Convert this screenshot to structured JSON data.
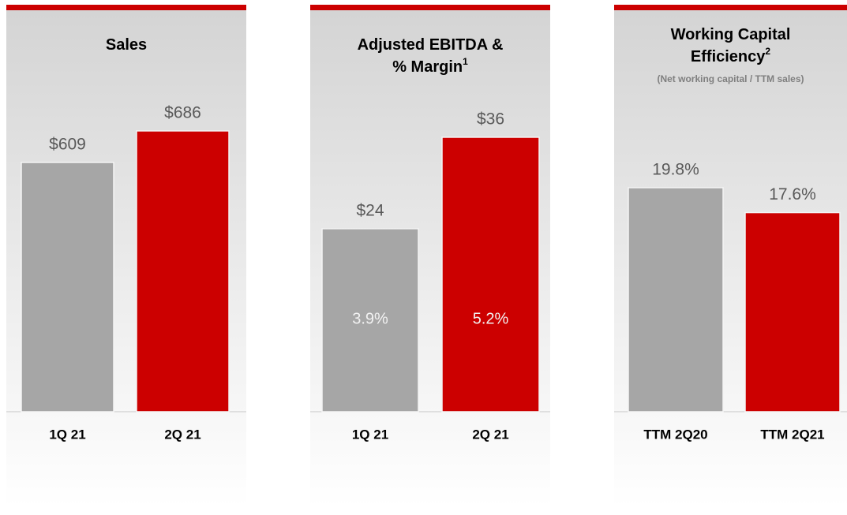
{
  "chart_data": [
    {
      "type": "bar",
      "title": [
        "Sales"
      ],
      "categories": [
        "1Q 21",
        "2Q 21"
      ],
      "values": [
        609,
        686
      ],
      "value_labels": [
        "$609",
        "$686"
      ],
      "colors": [
        "#a6a6a6",
        "#cc0000"
      ]
    },
    {
      "type": "bar",
      "title": [
        "Adjusted EBITDA &",
        "% Margin"
      ],
      "title_note": "1",
      "categories": [
        "1Q 21",
        "2Q 21"
      ],
      "values": [
        24,
        36
      ],
      "value_labels": [
        "$24",
        "$36"
      ],
      "annotations": [
        "3.9%",
        "5.2%"
      ],
      "colors": [
        "#a6a6a6",
        "#cc0000"
      ]
    },
    {
      "type": "bar",
      "title": [
        "Working Capital",
        "Efficiency"
      ],
      "title_note": "2",
      "subtitle": "(Net working capital / TTM sales)",
      "categories": [
        "TTM 2Q20",
        "TTM 2Q21"
      ],
      "values": [
        19.8,
        17.6
      ],
      "value_labels": [
        "19.8%",
        "17.6%"
      ],
      "colors": [
        "#a6a6a6",
        "#cc0000"
      ]
    }
  ]
}
